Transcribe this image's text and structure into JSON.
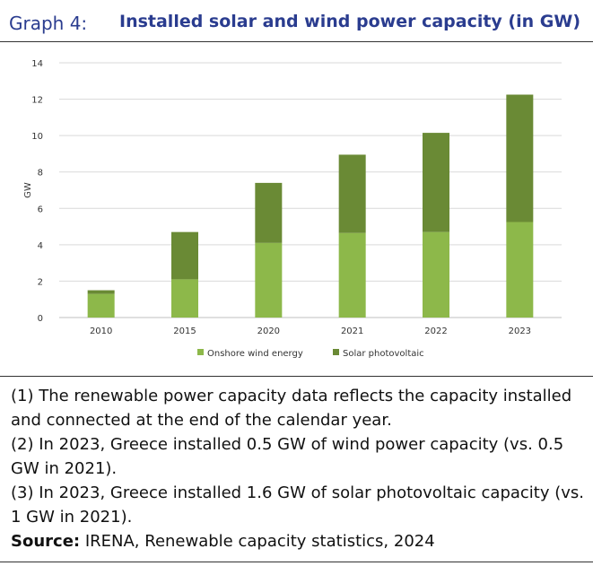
{
  "header": {
    "label": "Graph 4:",
    "title": "Installed solar and wind power capacity (in GW)"
  },
  "chart_data": {
    "type": "bar",
    "stacked": true,
    "categories": [
      "2010",
      "2015",
      "2020",
      "2021",
      "2022",
      "2023"
    ],
    "series": [
      {
        "name": "Onshore wind energy",
        "color": "#8db84a",
        "values": [
          1.3,
          2.1,
          4.1,
          4.65,
          4.7,
          5.25
        ]
      },
      {
        "name": "Solar photovoltaic",
        "color": "#6a8a35",
        "values": [
          0.2,
          2.6,
          3.3,
          4.3,
          5.45,
          7.0
        ]
      }
    ],
    "ylabel": "GW",
    "ylim": [
      0,
      14
    ],
    "yticks": [
      "0",
      "2",
      "4",
      "6",
      "8",
      "10",
      "12",
      "14"
    ],
    "grid": true,
    "legend_position": "bottom"
  },
  "notes": [
    "(1) The renewable power capacity data reflects the capacity installed and connected at the end of the calendar year.",
    "(2) In 2023, Greece installed 0.5 GW of wind power capacity (vs. 0.5 GW in 2021).",
    "(3) In 2023, Greece installed 1.6 GW of solar photovoltaic capacity (vs. 1 GW in 2021)."
  ],
  "source": {
    "label": "Source:",
    "text": " IRENA, Renewable capacity statistics, 2024"
  }
}
